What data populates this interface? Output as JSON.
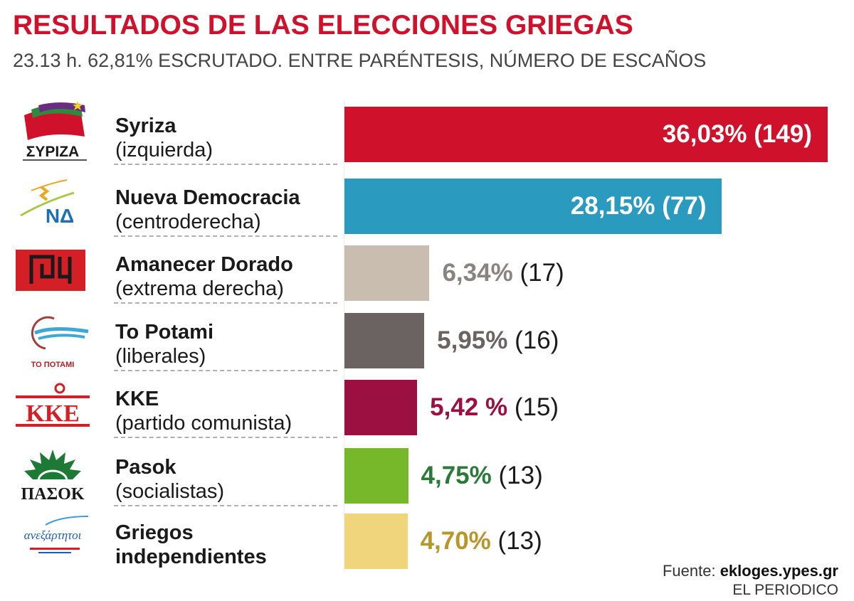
{
  "title": "RESULTADOS DE LAS ELECCIONES GRIEGAS",
  "subtitle": "23.13 h.  62,81% ESCRUTADO. ENTRE PARÉNTESIS, NÚMERO DE ESCAÑOS",
  "source_label": "Fuente:",
  "source_value": "ekloges.ypes.gr",
  "credit": "EL PERIODICO",
  "chart_data": {
    "type": "bar",
    "orientation": "horizontal",
    "title": "RESULTADOS DE LAS ELECCIONES GRIEGAS",
    "xlim": [
      0,
      36.03
    ],
    "grid": false,
    "categories": [
      "Syriza",
      "Nueva Democracia",
      "Amanecer Dorado",
      "To Potami",
      "KKE",
      "Pasok",
      "Griegos independientes"
    ],
    "parties": [
      {
        "name": "Syriza",
        "desc": "(izquierda)",
        "value": 36.03,
        "label": "36,03%",
        "seats": "(149)",
        "color": "#d0112b",
        "label_color": "#ffffff",
        "inside": true,
        "logo": "syriza-logo",
        "logo_text": "ΣΥΡΙΖΑ"
      },
      {
        "name": "Nueva Democracia",
        "desc": "(centroderecha)",
        "value": 28.15,
        "label": "28,15%",
        "seats": "(77)",
        "color": "#2a9bbf",
        "label_color": "#ffffff",
        "inside": true,
        "logo": "nd-logo",
        "logo_text": "ΝΔ"
      },
      {
        "name": "Amanecer Dorado",
        "desc": "(extrema derecha)",
        "value": 6.34,
        "label": "6,34%",
        "seats": "(17)",
        "color": "#c9bdb0",
        "label_color": "#8a8480",
        "inside": false,
        "logo": "golden-dawn-logo",
        "logo_text": ""
      },
      {
        "name": "To Potami",
        "desc": "(liberales)",
        "value": 5.95,
        "label": "5,95%",
        "seats": "(16)",
        "color": "#6b6262",
        "label_color": "#6b6262",
        "inside": false,
        "logo": "potami-logo",
        "logo_text": "ΤΟ ΠΟΤΑΜΙ"
      },
      {
        "name": "KKE",
        "desc": "(partido comunista)",
        "value": 5.42,
        "label": "5,42 %",
        "seats": "(15)",
        "color": "#9b1040",
        "label_color": "#9b1040",
        "inside": false,
        "logo": "kke-logo",
        "logo_text": "ΚΚΕ"
      },
      {
        "name": "Pasok",
        "desc": "(socialistas)",
        "value": 4.75,
        "label": "4,75%",
        "seats": "(13)",
        "color": "#77b82b",
        "label_color": "#2b7a3a",
        "inside": false,
        "logo": "pasok-logo",
        "logo_text": "ΠΑΣΟΚ"
      },
      {
        "name": "Griegos",
        "desc": "independientes",
        "value": 4.7,
        "label": "4,70%",
        "seats": "(13)",
        "color": "#f0d57c",
        "label_color": "#b8962a",
        "inside": false,
        "logo": "anel-logo",
        "logo_text": "ανεξάρτητοι"
      }
    ]
  }
}
